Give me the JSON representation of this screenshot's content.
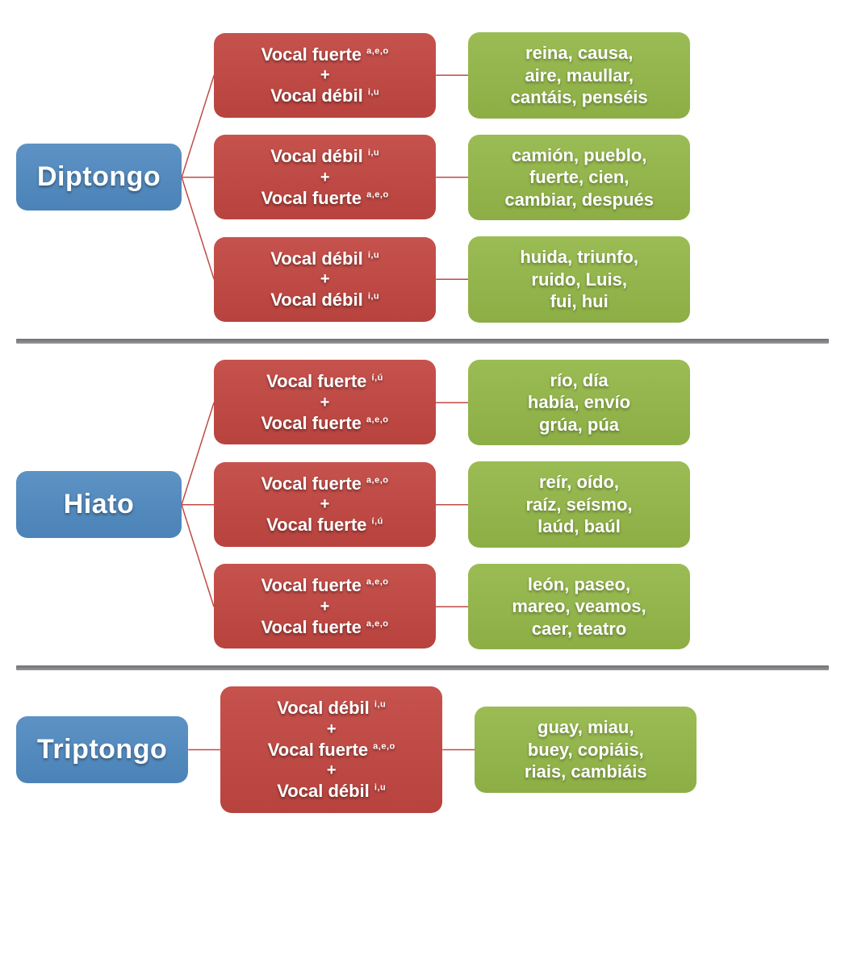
{
  "colors": {
    "root_bg": "#5088bd",
    "rule_bg": "#bf4b46",
    "example_bg": "#93b44c",
    "divider": "#7c7d81",
    "connector": "#bf4b46",
    "text": "#ffffff",
    "background": "#ffffff"
  },
  "typography": {
    "root_fontsize": 34,
    "rule_fontsize": 22,
    "example_fontsize": 22,
    "sup_fontsize": 11,
    "font_weight": 700
  },
  "layout": {
    "root_width": 205,
    "rule_width": 275,
    "example_width": 275,
    "border_radius": 14,
    "column_gap": 40,
    "row_gap": 20
  },
  "labels": {
    "vocal_fuerte": "Vocal fuerte",
    "vocal_debil": "Vocal débil",
    "plus": "+",
    "sup_aeo": "a,e,o",
    "sup_iu": "i,u",
    "sup_iu_acc": "í,ú"
  },
  "sections": [
    {
      "id": "diptongo",
      "root": "Diptongo",
      "rules": [
        {
          "lines": [
            {
              "type": "fuerte",
              "sup": "a,e,o"
            },
            {
              "type": "debil",
              "sup": "i,u"
            }
          ],
          "examples": "reina, causa,\naire, maullar,\ncantáis, penséis"
        },
        {
          "lines": [
            {
              "type": "debil",
              "sup": "i,u"
            },
            {
              "type": "fuerte",
              "sup": "a,e,o"
            }
          ],
          "examples": "camión, pueblo,\nfuerte, cien,\ncambiar, después"
        },
        {
          "lines": [
            {
              "type": "debil",
              "sup": "i,u"
            },
            {
              "type": "debil",
              "sup": "i,u"
            }
          ],
          "examples": "huida, triunfo,\nruido, Luis,\nfui, hui"
        }
      ]
    },
    {
      "id": "hiato",
      "root": "Hiato",
      "rules": [
        {
          "lines": [
            {
              "type": "fuerte",
              "sup": "í,ú"
            },
            {
              "type": "fuerte",
              "sup": "a,e,o"
            }
          ],
          "examples": "río, día\nhabía, envío\ngrúa, púa"
        },
        {
          "lines": [
            {
              "type": "fuerte",
              "sup": "a,e,o"
            },
            {
              "type": "fuerte",
              "sup": "í,ú"
            }
          ],
          "examples": "reír, oído,\nraíz, seísmo,\nlaúd, baúl"
        },
        {
          "lines": [
            {
              "type": "fuerte",
              "sup": "a,e,o"
            },
            {
              "type": "fuerte",
              "sup": "a,e,o"
            }
          ],
          "examples": "león, paseo,\nmareo, veamos,\ncaer, teatro"
        }
      ]
    },
    {
      "id": "triptongo",
      "root": "Triptongo",
      "rules": [
        {
          "lines": [
            {
              "type": "debil",
              "sup": "i,u"
            },
            {
              "type": "fuerte",
              "sup": "a,e,o"
            },
            {
              "type": "debil",
              "sup": "i,u"
            }
          ],
          "examples": "guay, miau,\nbuey, copiáis,\nriais, cambiáis"
        }
      ]
    }
  ]
}
